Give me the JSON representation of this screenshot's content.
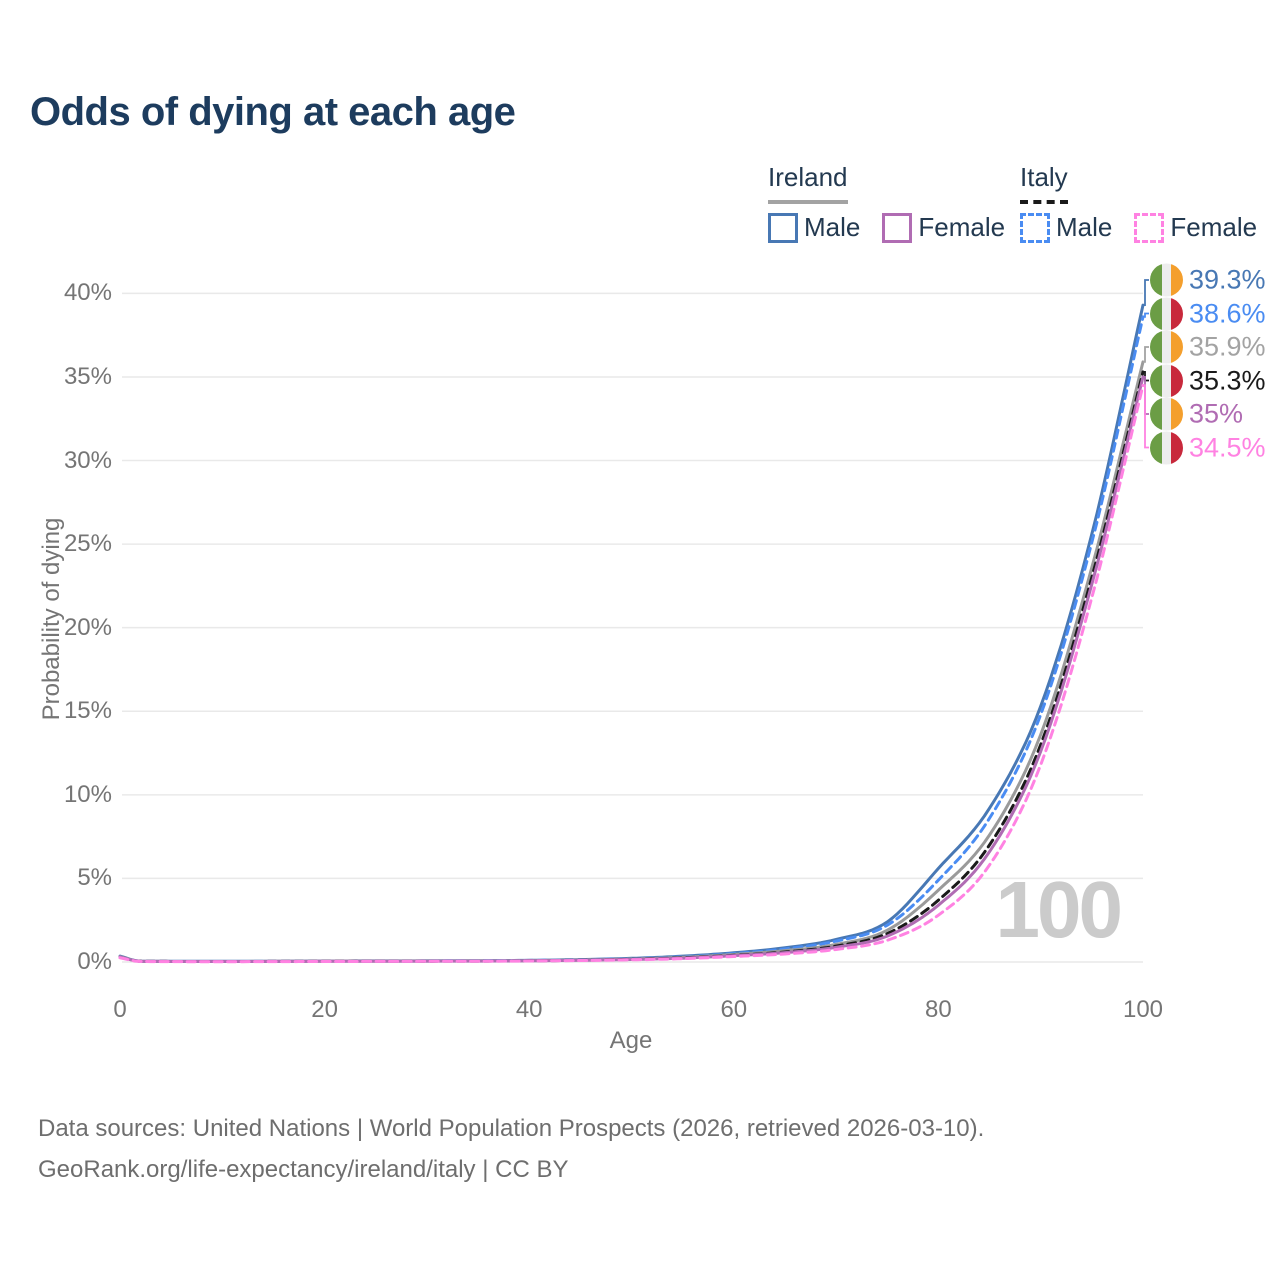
{
  "title": "Odds of dying at each age",
  "legend": {
    "groups": [
      {
        "label": "Ireland",
        "line_style": "solid",
        "line_color": "#a3a3a3",
        "items": [
          {
            "label": "Male",
            "color": "#4878b4"
          },
          {
            "label": "Female",
            "color": "#b06cb3"
          }
        ]
      },
      {
        "label": "Italy",
        "line_style": "dashed",
        "line_color": "#1a1a1a",
        "items": [
          {
            "label": "Male",
            "color": "#4a8cf2"
          },
          {
            "label": "Female",
            "color": "#ff82e2"
          }
        ]
      }
    ]
  },
  "flags": {
    "ireland": {
      "stripes": [
        "#6b9d45",
        "#ededed",
        "#f49f2d"
      ]
    },
    "italy": {
      "stripes": [
        "#6b9d45",
        "#ededed",
        "#c8293c"
      ]
    }
  },
  "chart_data": {
    "type": "line",
    "title": "Odds of dying at each age",
    "xlabel": "Age",
    "ylabel": "Probability of dying",
    "xlim": [
      0,
      100
    ],
    "ylim_pct": [
      0,
      41
    ],
    "x_ticks": [
      0,
      20,
      40,
      60,
      80,
      100
    ],
    "y_ticks": [
      "0%",
      "5%",
      "10%",
      "15%",
      "20%",
      "25%",
      "30%",
      "35%",
      "40%"
    ],
    "grid": "horizontal",
    "legend_position": "top-right",
    "watermark": "100",
    "ages": [
      0,
      2,
      10,
      20,
      30,
      40,
      50,
      55,
      60,
      65,
      70,
      75,
      80,
      85,
      90,
      95,
      100
    ],
    "series": [
      {
        "name": "Ireland Male",
        "country": "Ireland",
        "sex": "Male",
        "style": "solid",
        "color": "#4878b4",
        "flag": "ireland",
        "end_label": "39.3%",
        "label_color": "#4878b4",
        "end_value_pct": 39.3,
        "values_pct": [
          0.35,
          0.05,
          0.04,
          0.06,
          0.07,
          0.1,
          0.22,
          0.35,
          0.55,
          0.85,
          1.35,
          2.4,
          5.6,
          9.2,
          15.3,
          25.6,
          39.3
        ]
      },
      {
        "name": "Italy Male",
        "country": "Italy",
        "sex": "Male",
        "style": "dashed",
        "color": "#4a8cf2",
        "flag": "italy",
        "end_label": "38.6%",
        "label_color": "#4a8cf2",
        "end_value_pct": 38.6,
        "values_pct": [
          0.3,
          0.04,
          0.03,
          0.05,
          0.06,
          0.09,
          0.2,
          0.31,
          0.5,
          0.78,
          1.25,
          2.2,
          4.9,
          8.6,
          14.8,
          25.1,
          38.6
        ]
      },
      {
        "name": "Ireland Both sexes",
        "country": "Ireland",
        "sex": "Both",
        "style": "solid",
        "color": "#9a9a9a",
        "flag": "ireland",
        "end_label": "35.9%",
        "label_color": "#a3a3a3",
        "end_value_pct": 35.9,
        "values_pct": [
          0.32,
          0.04,
          0.03,
          0.05,
          0.06,
          0.08,
          0.18,
          0.28,
          0.45,
          0.68,
          1.05,
          1.9,
          4.3,
          7.6,
          13.6,
          23.6,
          35.9
        ]
      },
      {
        "name": "Italy Both sexes",
        "country": "Italy",
        "sex": "Both",
        "style": "dashed",
        "color": "#1a1a1a",
        "flag": "italy",
        "end_label": "35.3%",
        "label_color": "#1a1a1a",
        "end_value_pct": 35.3,
        "values_pct": [
          0.28,
          0.04,
          0.03,
          0.04,
          0.05,
          0.07,
          0.16,
          0.25,
          0.4,
          0.6,
          0.95,
          1.7,
          3.7,
          7.0,
          13.0,
          23.0,
          35.3
        ]
      },
      {
        "name": "Ireland Female",
        "country": "Ireland",
        "sex": "Female",
        "style": "solid",
        "color": "#b06cb3",
        "flag": "ireland",
        "end_label": "35%",
        "label_color": "#b06cb3",
        "end_value_pct": 35.0,
        "values_pct": [
          0.3,
          0.04,
          0.03,
          0.04,
          0.05,
          0.07,
          0.15,
          0.23,
          0.38,
          0.56,
          0.88,
          1.55,
          3.4,
          6.6,
          12.6,
          22.6,
          35.0
        ]
      },
      {
        "name": "Italy Female",
        "country": "Italy",
        "sex": "Female",
        "style": "dashed",
        "color": "#ff82e2",
        "flag": "italy",
        "end_label": "34.5%",
        "label_color": "#ff82e2",
        "end_value_pct": 34.5,
        "values_pct": [
          0.25,
          0.03,
          0.02,
          0.03,
          0.04,
          0.06,
          0.13,
          0.2,
          0.33,
          0.48,
          0.75,
          1.3,
          2.8,
          5.8,
          11.8,
          21.8,
          34.5
        ]
      }
    ]
  },
  "footer": {
    "line1": "Data sources: United Nations | World Population Prospects (2026, retrieved 2026-03-10).",
    "line2": "GeoRank.org/life-expectancy/ireland/italy | CC BY"
  }
}
